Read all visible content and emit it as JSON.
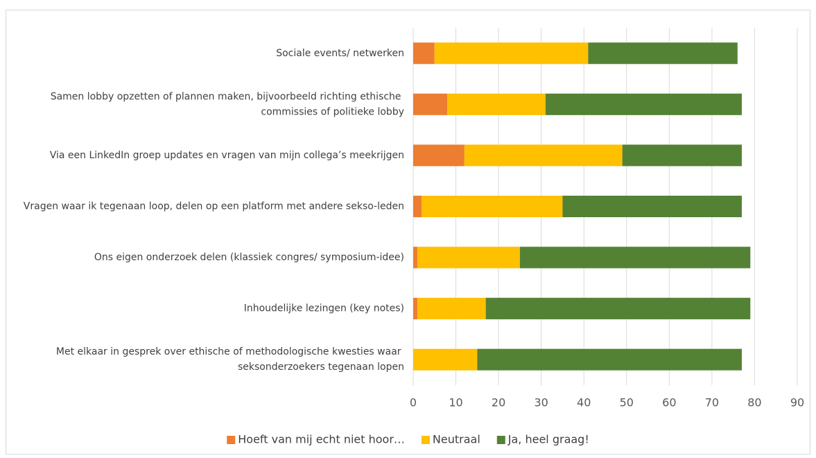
{
  "chart_data": {
    "type": "stacked-barh",
    "categories": [
      "Sociale events/ netwerken",
      "Samen lobby opzetten of plannen maken, bijvoorbeeld richting ethische commissies of politieke lobby",
      "Via een LinkedIn groep updates en vragen van mijn collega’s meekrijgen",
      "Vragen waar ik tegenaan loop, delen op een platform met andere sekso-leden",
      "Ons eigen onderzoek delen (klassiek congres/ symposium-idee)",
      "Inhoudelijke lezingen (key notes)",
      "Met elkaar in gesprek over ethische of methodologische kwesties waar seksonderzoekers tegenaan lopen"
    ],
    "series": [
      {
        "name": "Hoeft van mij echt niet hoor…",
        "color": "#ed7d31",
        "values": [
          5,
          8,
          12,
          2,
          1,
          1,
          0
        ]
      },
      {
        "name": "Neutraal",
        "color": "#ffc000",
        "values": [
          36,
          23,
          37,
          33,
          24,
          16,
          15
        ]
      },
      {
        "name": "Ja, heel graag!",
        "color": "#548235",
        "values": [
          35,
          46,
          28,
          42,
          54,
          62,
          62
        ]
      }
    ],
    "xlim": [
      0,
      90
    ],
    "xticks": [
      0,
      10,
      20,
      30,
      40,
      50,
      60,
      70,
      80,
      90
    ],
    "grid": true,
    "legend": "bottom"
  }
}
